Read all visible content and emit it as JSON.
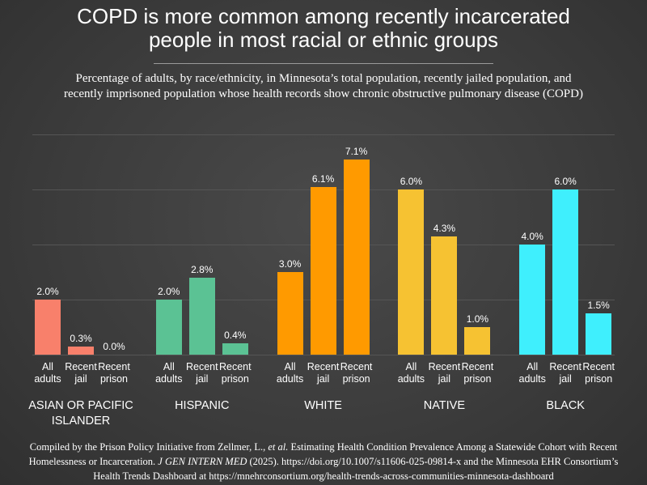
{
  "chart_data": {
    "type": "grouped-bar",
    "title": "COPD is more common among recently incarcerated people in most racial or ethnic groups",
    "subtitle": "Percentage of adults, by race/ethnicity, in Minnesota’s total population, recently jailed population, and recently imprisoned population whose health records show chronic obstructive pulmonary disease (COPD)",
    "categories": [
      "All adults",
      "Recent jail",
      "Recent prison"
    ],
    "groups": [
      {
        "name": "ASIAN OR PACIFIC ISLANDER",
        "color": "#f8806b",
        "values": [
          2.0,
          0.3,
          0.0
        ],
        "value_labels": [
          "2.0%",
          "0.3%",
          "0.0%"
        ]
      },
      {
        "name": "HISPANIC",
        "color": "#5bc294",
        "values": [
          2.0,
          2.8,
          0.4
        ],
        "value_labels": [
          "2.0%",
          "2.8%",
          "0.4%"
        ]
      },
      {
        "name": "WHITE",
        "color": "#ff9a00",
        "values": [
          3.0,
          6.1,
          7.1
        ],
        "value_labels": [
          "3.0%",
          "6.1%",
          "7.1%"
        ]
      },
      {
        "name": "NATIVE",
        "color": "#f6c232",
        "values": [
          6.0,
          4.3,
          1.0
        ],
        "value_labels": [
          "6.0%",
          "4.3%",
          "1.0%"
        ]
      },
      {
        "name": "BLACK",
        "color": "#3feffd",
        "values": [
          4.0,
          6.0,
          1.5
        ],
        "value_labels": [
          "4.0%",
          "6.0%",
          "1.5%"
        ]
      }
    ],
    "ylim": [
      0,
      8
    ],
    "yticks": [
      0,
      2,
      4,
      6,
      8
    ],
    "grid": true,
    "source": [
      {
        "text": "Compiled by the Prison Policy Initiative from Zellmer, L., ",
        "italic": false
      },
      {
        "text": "et al.",
        "italic": true
      },
      {
        "text": " Estimating Health Condition Prevalence Among a Statewide Cohort with Recent Homelessness or Incarceration. ",
        "italic": false
      },
      {
        "text": "J GEN INTERN MED",
        "italic": true
      },
      {
        "text": " (2025). https://doi.org/10.1007/s11606-025-09814-x and the Minnesota EHR Consortium’s Health Trends Dashboard at https://mnehrconsortium.org/health-trends-across-communities-minnesota-dashboard",
        "italic": false
      }
    ]
  }
}
